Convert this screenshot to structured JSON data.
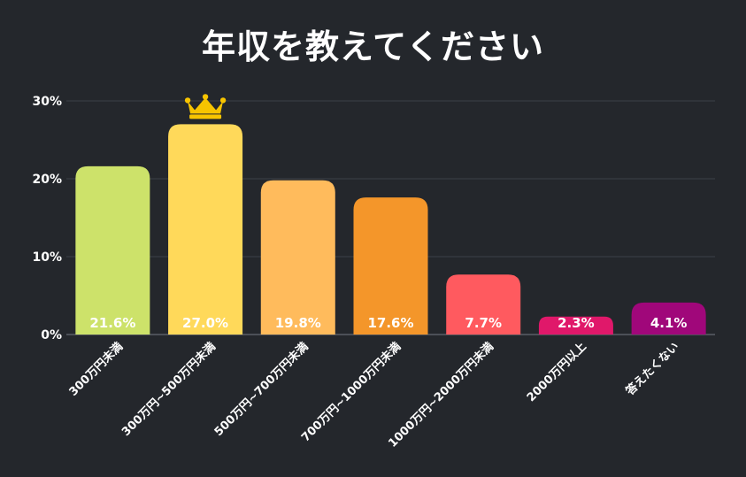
{
  "chart_data": {
    "type": "bar",
    "title": "年収を教えてください",
    "categories": [
      "300万円未満",
      "300万円~500万円未満",
      "500万円~700万円未満",
      "700万円~1000万円未満",
      "1000万円~2000万円未満",
      "2000万円以上",
      "答えたくない"
    ],
    "values": [
      21.6,
      27.0,
      19.8,
      17.6,
      7.7,
      2.3,
      4.1
    ],
    "value_labels": [
      "21.6%",
      "27.0%",
      "19.8%",
      "17.6%",
      "7.7%",
      "2.3%",
      "4.1%"
    ],
    "colors": [
      "#cde26a",
      "#ffd95a",
      "#ffbb5c",
      "#f4962a",
      "#ff5a5f",
      "#e0186a",
      "#a0077a"
    ],
    "yticks": [
      {
        "value": 0,
        "label": "0%"
      },
      {
        "value": 10,
        "label": "10%"
      },
      {
        "value": 20,
        "label": "20%"
      },
      {
        "value": 30,
        "label": "30%"
      }
    ],
    "ylim": [
      0,
      30
    ],
    "grid": true,
    "highlight": {
      "category_index": 1,
      "icon": "crown-icon",
      "color": "#f7c400"
    }
  }
}
